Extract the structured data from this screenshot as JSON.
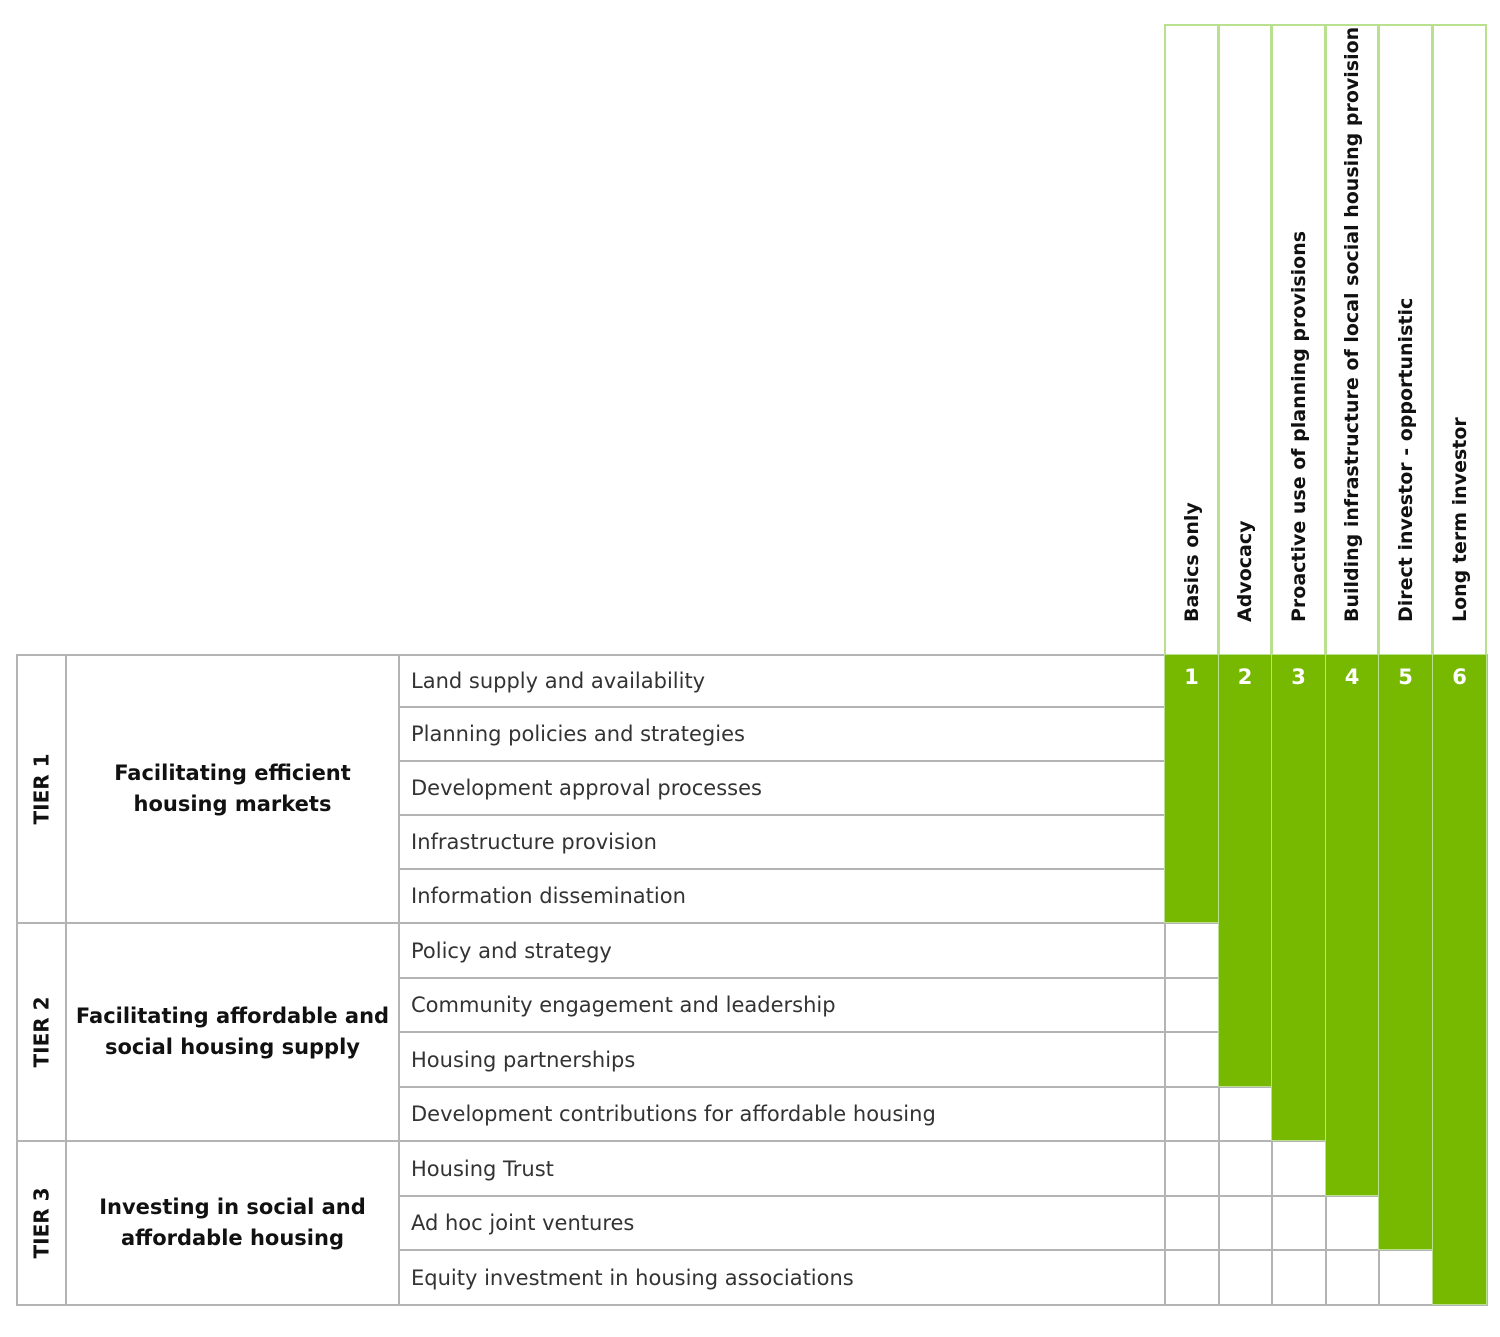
{
  "columns": [
    {
      "label": "Basics only",
      "number": "1",
      "rows_filled": 5
    },
    {
      "label": "Advocacy",
      "number": "2",
      "rows_filled": 8
    },
    {
      "label": "Proactive use of planning provisions",
      "number": "3",
      "rows_filled": 9
    },
    {
      "label": "Building infrastructure of local social housing provision",
      "number": "4",
      "rows_filled": 10
    },
    {
      "label": "Direct investor - opportunistic",
      "number": "5",
      "rows_filled": 11
    },
    {
      "label": "Long term investor",
      "number": "6",
      "rows_filled": 12
    }
  ],
  "tiers": [
    {
      "label": "TIER 1",
      "category": "Facilitating efficient housing markets",
      "items": [
        "Land supply and availability",
        "Planning policies and strategies",
        "Development approval processes",
        "Infrastructure provision",
        "Information dissemination"
      ]
    },
    {
      "label": "TIER 2",
      "category": "Facilitating affordable and social housing supply",
      "items": [
        "Policy and strategy",
        "Community engagement and leadership",
        "Housing partnerships",
        "Development contributions for affordable housing"
      ]
    },
    {
      "label": "TIER 3",
      "category": "Investing in social and affordable housing",
      "items": [
        "Housing Trust",
        "Ad hoc joint ventures",
        "Equity investment in housing associations"
      ]
    }
  ],
  "colors": {
    "fill": "#76b900",
    "header_border": "#b9e08e",
    "grid": "#b4b4b4"
  }
}
